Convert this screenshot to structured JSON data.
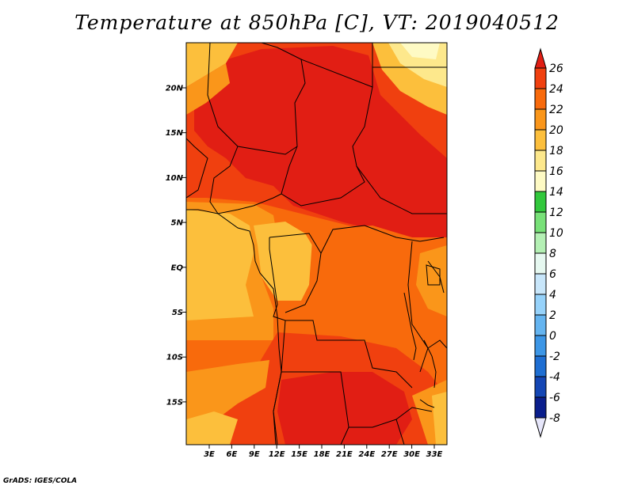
{
  "title": "Temperature at 850hPa [C], VT: 2019040512",
  "credit": "GrADS: IGES/COLA",
  "map": {
    "lat_labels": [
      "20N",
      "15N",
      "10N",
      "5N",
      "EQ",
      "5S",
      "10S",
      "15S"
    ],
    "lon_labels": [
      "3E",
      "6E",
      "9E",
      "12E",
      "15E",
      "18E",
      "21E",
      "24E",
      "27E",
      "30E",
      "33E"
    ]
  },
  "colorbar": {
    "labels": [
      "26",
      "24",
      "22",
      "20",
      "18",
      "16",
      "14",
      "12",
      "10",
      "8",
      "6",
      "4",
      "2",
      "0",
      "-2",
      "-4",
      "-6",
      "-8"
    ],
    "colors": [
      "#e11e14",
      "#f0400f",
      "#f86a0c",
      "#fa961a",
      "#fcbf3c",
      "#fde88c",
      "#fefac4",
      "#32c83c",
      "#78e178",
      "#b4f0b4",
      "#e6f8f0",
      "#c8e6fa",
      "#96d2fa",
      "#64b4f0",
      "#3c96e6",
      "#1e6ed2",
      "#1446b4",
      "#0a1e8c",
      "#050a5a"
    ]
  }
}
